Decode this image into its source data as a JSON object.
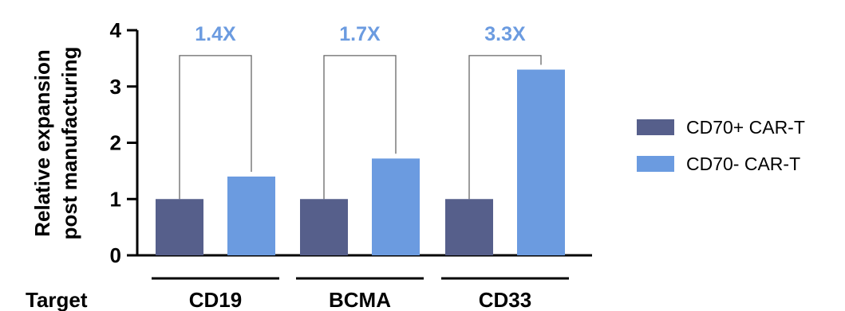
{
  "chart_data": {
    "type": "bar",
    "title": "",
    "ylabel_lines": [
      "Relative expansion",
      "post manufacturing"
    ],
    "xlabel": "Target",
    "ylim": [
      0,
      4
    ],
    "yticks": [
      "0",
      "1",
      "2",
      "3",
      "4"
    ],
    "categories": [
      "CD19",
      "BCMA",
      "CD33"
    ],
    "series": [
      {
        "name": "CD70+ CAR-T",
        "color": "#565f8b",
        "values": [
          1.0,
          1.0,
          1.0
        ]
      },
      {
        "name": "CD70- CAR-T",
        "color": "#6b9be0",
        "values": [
          1.4,
          1.72,
          3.3
        ]
      }
    ],
    "fold_changes": [
      "1.4X",
      "1.7X",
      "3.3X"
    ],
    "fold_color": "#6b9be0",
    "legend_position": "right"
  }
}
